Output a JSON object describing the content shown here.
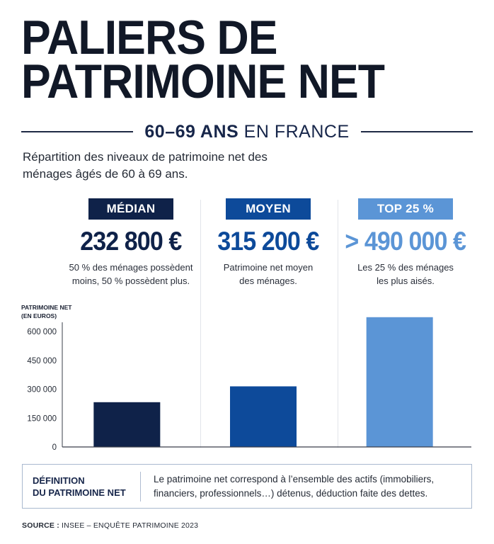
{
  "title": {
    "line1": "PALIERS DE",
    "line2": "PATRIMOINE NET"
  },
  "subtitle": {
    "bold": "60–69 ANS",
    "rest": " EN FRANCE"
  },
  "description": "Répartition des niveaux de patrimoine net des ménages âgés de 60 à 69 ans.",
  "stats": [
    {
      "label": "MÉDIAN",
      "value": "232 800 €",
      "note_line1": "50 % des ménages possèdent",
      "note_line2": "moins, 50 % possèdent plus.",
      "color": "#0f2249"
    },
    {
      "label": "MOYEN",
      "value": "315 200 €",
      "note_line1": "Patrimoine net moyen",
      "note_line2": "des ménages.",
      "color": "#0d4a9a"
    },
    {
      "label": "TOP 25 %",
      "value": "> 490 000 €",
      "note_line1": "Les 25 % des ménages",
      "note_line2": "les plus aisés.",
      "color": "#5b95d6"
    }
  ],
  "chart_data": {
    "type": "bar",
    "categories": [
      "MÉDIAN",
      "MOYEN",
      "TOP 25 %"
    ],
    "values": [
      232800,
      315200,
      675000
    ],
    "ylabel_line1": "PATRIMOINE NET",
    "ylabel_line2": "(EN EUROS)",
    "yticks": [
      0,
      150000,
      300000,
      450000,
      600000
    ],
    "ytick_labels": [
      "0",
      "150 000",
      "300 000",
      "450 000",
      "600 000"
    ],
    "ylim": [
      0,
      700000
    ],
    "colors": [
      "#0f2249",
      "#0d4a9a",
      "#5b95d6"
    ],
    "grid": false
  },
  "definition": {
    "title_line1": "DÉFINITION",
    "title_line2": "DU PATRIMOINE NET",
    "text": "Le patrimoine net correspond à l’ensemble des actifs (immobiliers, financiers, professionnels…) détenus, déduction faite des dettes."
  },
  "source": {
    "label": "SOURCE :",
    "text": " INSEE – ENQUÊTE PATRIMOINE 2023"
  }
}
